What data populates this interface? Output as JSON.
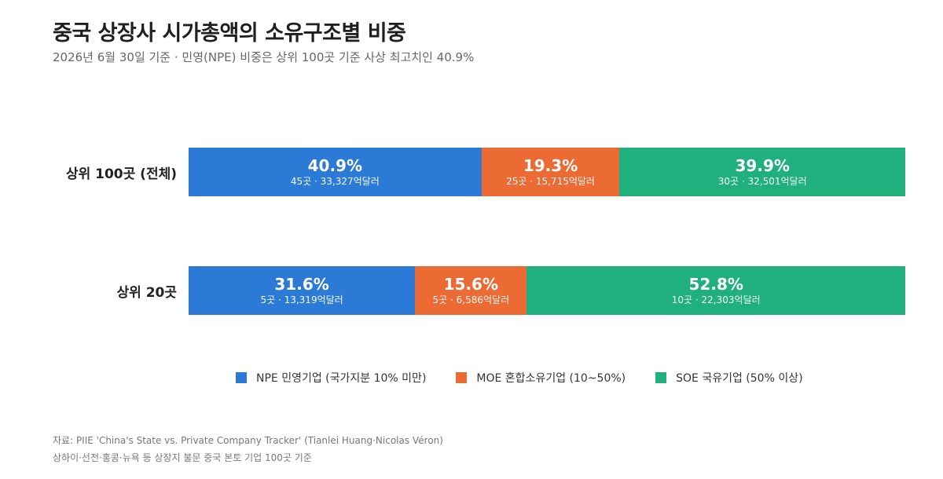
{
  "title": "중국 상장사 시가총액의 소유구조별 비중",
  "subtitle": "2026년 6월 30일 기준 · 민영(NPE) 비중은 상위 100곳 기준 사상 최고치인 40.9%",
  "colors": {
    "npe": "#2b7bd6",
    "moe": "#ec6a33",
    "soe": "#1fb07d"
  },
  "chart_data": {
    "type": "bar",
    "orientation": "horizontal",
    "stacked": true,
    "normalized_percent": true,
    "categories": [
      "상위 100곳 (전체)",
      "상위 20곳"
    ],
    "series": [
      {
        "name": "NPE 민영기업 (국가지분 10% 미만)",
        "key": "npe",
        "values": [
          40.9,
          31.6
        ],
        "labels": [
          "40.9%",
          "31.6%"
        ],
        "details": [
          "45곳 · 33,327억달러",
          "5곳 · 13,319억달러"
        ]
      },
      {
        "name": "MOE 혼합소유기업 (10~50%)",
        "key": "moe",
        "values": [
          19.3,
          15.6
        ],
        "labels": [
          "19.3%",
          "15.6%"
        ],
        "details": [
          "25곳 · 15,715억달러",
          "5곳 · 6,586억달러"
        ]
      },
      {
        "name": "SOE 국유기업 (50% 이상)",
        "key": "soe",
        "values": [
          39.9,
          52.8
        ],
        "labels": [
          "39.9%",
          "52.8%"
        ],
        "details": [
          "30곳 · 32,501억달러",
          "10곳 · 22,303억달러"
        ]
      }
    ],
    "legend_position": "bottom",
    "grid": false
  },
  "footer": {
    "source": "자료: PIIE 'China's State vs. Private Company Tracker' (Tianlei Huang·Nicolas Véron)",
    "note": "상하이·선전·홍콩·뉴욕 등 상장지 불문 중국 본토 기업 100곳 기준"
  }
}
